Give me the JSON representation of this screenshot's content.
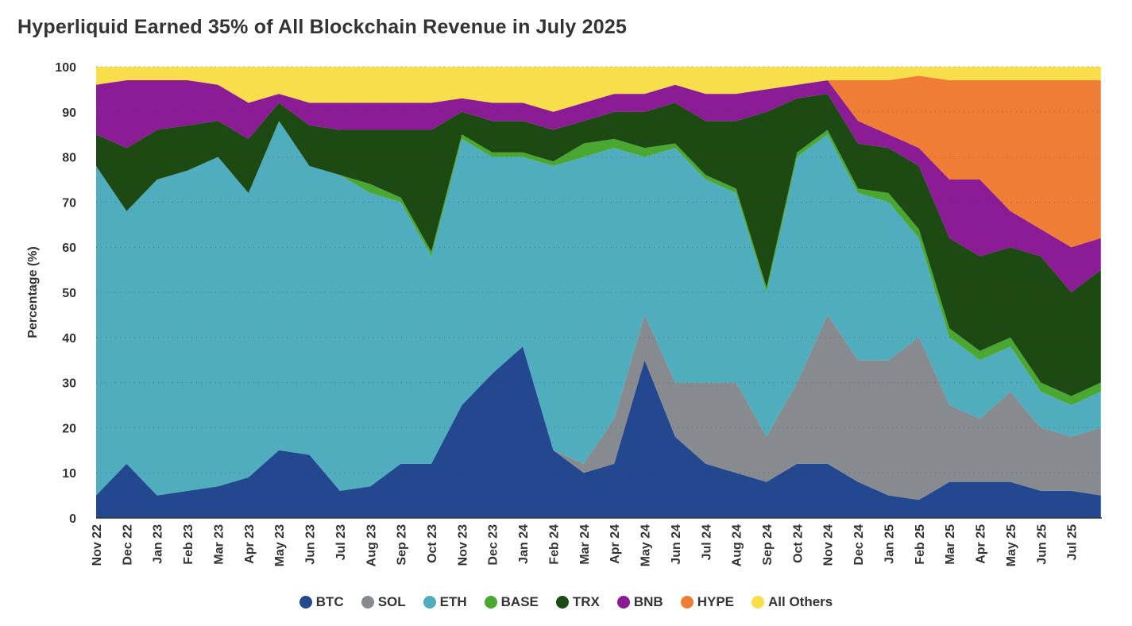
{
  "chart_data": {
    "type": "area",
    "stacked": "percent",
    "title": "Hyperliquid Earned 35% of All Blockchain Revenue in July 2025",
    "xlabel": "",
    "ylabel": "Percentage (%)",
    "ylim": [
      0,
      100
    ],
    "yticks": [
      0,
      10,
      20,
      30,
      40,
      50,
      60,
      70,
      80,
      90,
      100
    ],
    "grid": "horizontal dotted",
    "legend": "bottom",
    "xtick_labels": [
      "Nov 22",
      "Dec 22",
      "Jan 23",
      "Feb 23",
      "Mar 23",
      "Apr 23",
      "May 23",
      "Jun 23",
      "Jul 23",
      "Aug 23",
      "Sep 23",
      "Oct 23",
      "Nov 23",
      "Dec 23",
      "Jan 24",
      "Feb 24",
      "Mar 24",
      "Apr 24",
      "May 24",
      "Jun 24",
      "Jul 24",
      "Aug 24",
      "Sep 24",
      "Oct 24",
      "Nov 24",
      "Dec 24",
      "Jan 25",
      "Feb 25",
      "Mar 25",
      "Apr 25",
      "May 25",
      "Jun 25",
      "Jul 25"
    ],
    "x": [
      "2022-11-01",
      "2022-12-01",
      "2023-01-01",
      "2023-02-01",
      "2023-03-01",
      "2023-04-01",
      "2023-05-01",
      "2023-06-01",
      "2023-07-01",
      "2023-08-01",
      "2023-09-01",
      "2023-10-01",
      "2023-11-01",
      "2023-12-01",
      "2024-01-01",
      "2024-02-01",
      "2024-03-01",
      "2024-04-01",
      "2024-05-01",
      "2024-06-01",
      "2024-07-01",
      "2024-08-01",
      "2024-09-01",
      "2024-10-01",
      "2024-11-01",
      "2024-12-01",
      "2025-01-01",
      "2025-02-01",
      "2025-03-01",
      "2025-04-01",
      "2025-05-01",
      "2025-06-01",
      "2025-07-01",
      "2025-07-31"
    ],
    "series": [
      {
        "name": "BTC",
        "color": "#23488f",
        "values": [
          5,
          12,
          5,
          6,
          7,
          9,
          15,
          14,
          6,
          7,
          12,
          12,
          25,
          32,
          38,
          15,
          10,
          12,
          35,
          18,
          12,
          10,
          8,
          12,
          12,
          8,
          5,
          4,
          8,
          8,
          8,
          6,
          6,
          5
        ]
      },
      {
        "name": "SOL",
        "color": "#878b90",
        "values": [
          0,
          0,
          0,
          0,
          0,
          0,
          0,
          0,
          0,
          0,
          0,
          0,
          0,
          0,
          0,
          0,
          2,
          10,
          10,
          12,
          18,
          20,
          10,
          18,
          33,
          27,
          30,
          36,
          17,
          14,
          20,
          14,
          12,
          15
        ]
      },
      {
        "name": "ETH",
        "color": "#4fadbd",
        "values": [
          73,
          56,
          70,
          71,
          73,
          63,
          73,
          64,
          70,
          65,
          58,
          46,
          59,
          48,
          42,
          63,
          68,
          60,
          35,
          52,
          45,
          42,
          32,
          50,
          40,
          37,
          35,
          22,
          15,
          13,
          10,
          8,
          7,
          8
        ]
      },
      {
        "name": "BASE",
        "color": "#4aa832",
        "values": [
          0,
          0,
          0,
          0,
          0,
          0,
          0,
          0,
          0,
          2,
          1,
          1,
          1,
          1,
          1,
          1,
          3,
          2,
          2,
          1,
          1,
          1,
          1,
          1,
          1,
          1,
          2,
          2,
          2,
          2,
          2,
          2,
          2,
          2
        ]
      },
      {
        "name": "TRX",
        "color": "#1c4a12",
        "values": [
          7,
          14,
          11,
          10,
          8,
          12,
          4,
          9,
          10,
          12,
          15,
          27,
          5,
          7,
          7,
          7,
          5,
          6,
          8,
          9,
          12,
          15,
          39,
          12,
          8,
          10,
          10,
          14,
          20,
          21,
          20,
          28,
          23,
          25
        ]
      },
      {
        "name": "BNB",
        "color": "#8c1c96",
        "values": [
          11,
          15,
          11,
          10,
          8,
          8,
          2,
          5,
          6,
          6,
          6,
          6,
          3,
          4,
          4,
          4,
          4,
          4,
          4,
          4,
          6,
          6,
          5,
          3,
          3,
          5,
          3,
          4,
          13,
          17,
          8,
          6,
          10,
          7
        ]
      },
      {
        "name": "HYPE",
        "color": "#ef7d35",
        "values": [
          0,
          0,
          0,
          0,
          0,
          0,
          0,
          0,
          0,
          0,
          0,
          0,
          0,
          0,
          0,
          0,
          0,
          0,
          0,
          0,
          0,
          0,
          0,
          0,
          0,
          9,
          12,
          16,
          22,
          22,
          29,
          33,
          37,
          35
        ]
      },
      {
        "name": "All Others",
        "color": "#f7de4a",
        "values": [
          4,
          3,
          3,
          3,
          4,
          8,
          6,
          8,
          8,
          8,
          8,
          8,
          7,
          8,
          8,
          10,
          8,
          6,
          6,
          4,
          6,
          6,
          5,
          4,
          3,
          3,
          3,
          2,
          3,
          3,
          3,
          3,
          3,
          3
        ]
      }
    ]
  }
}
